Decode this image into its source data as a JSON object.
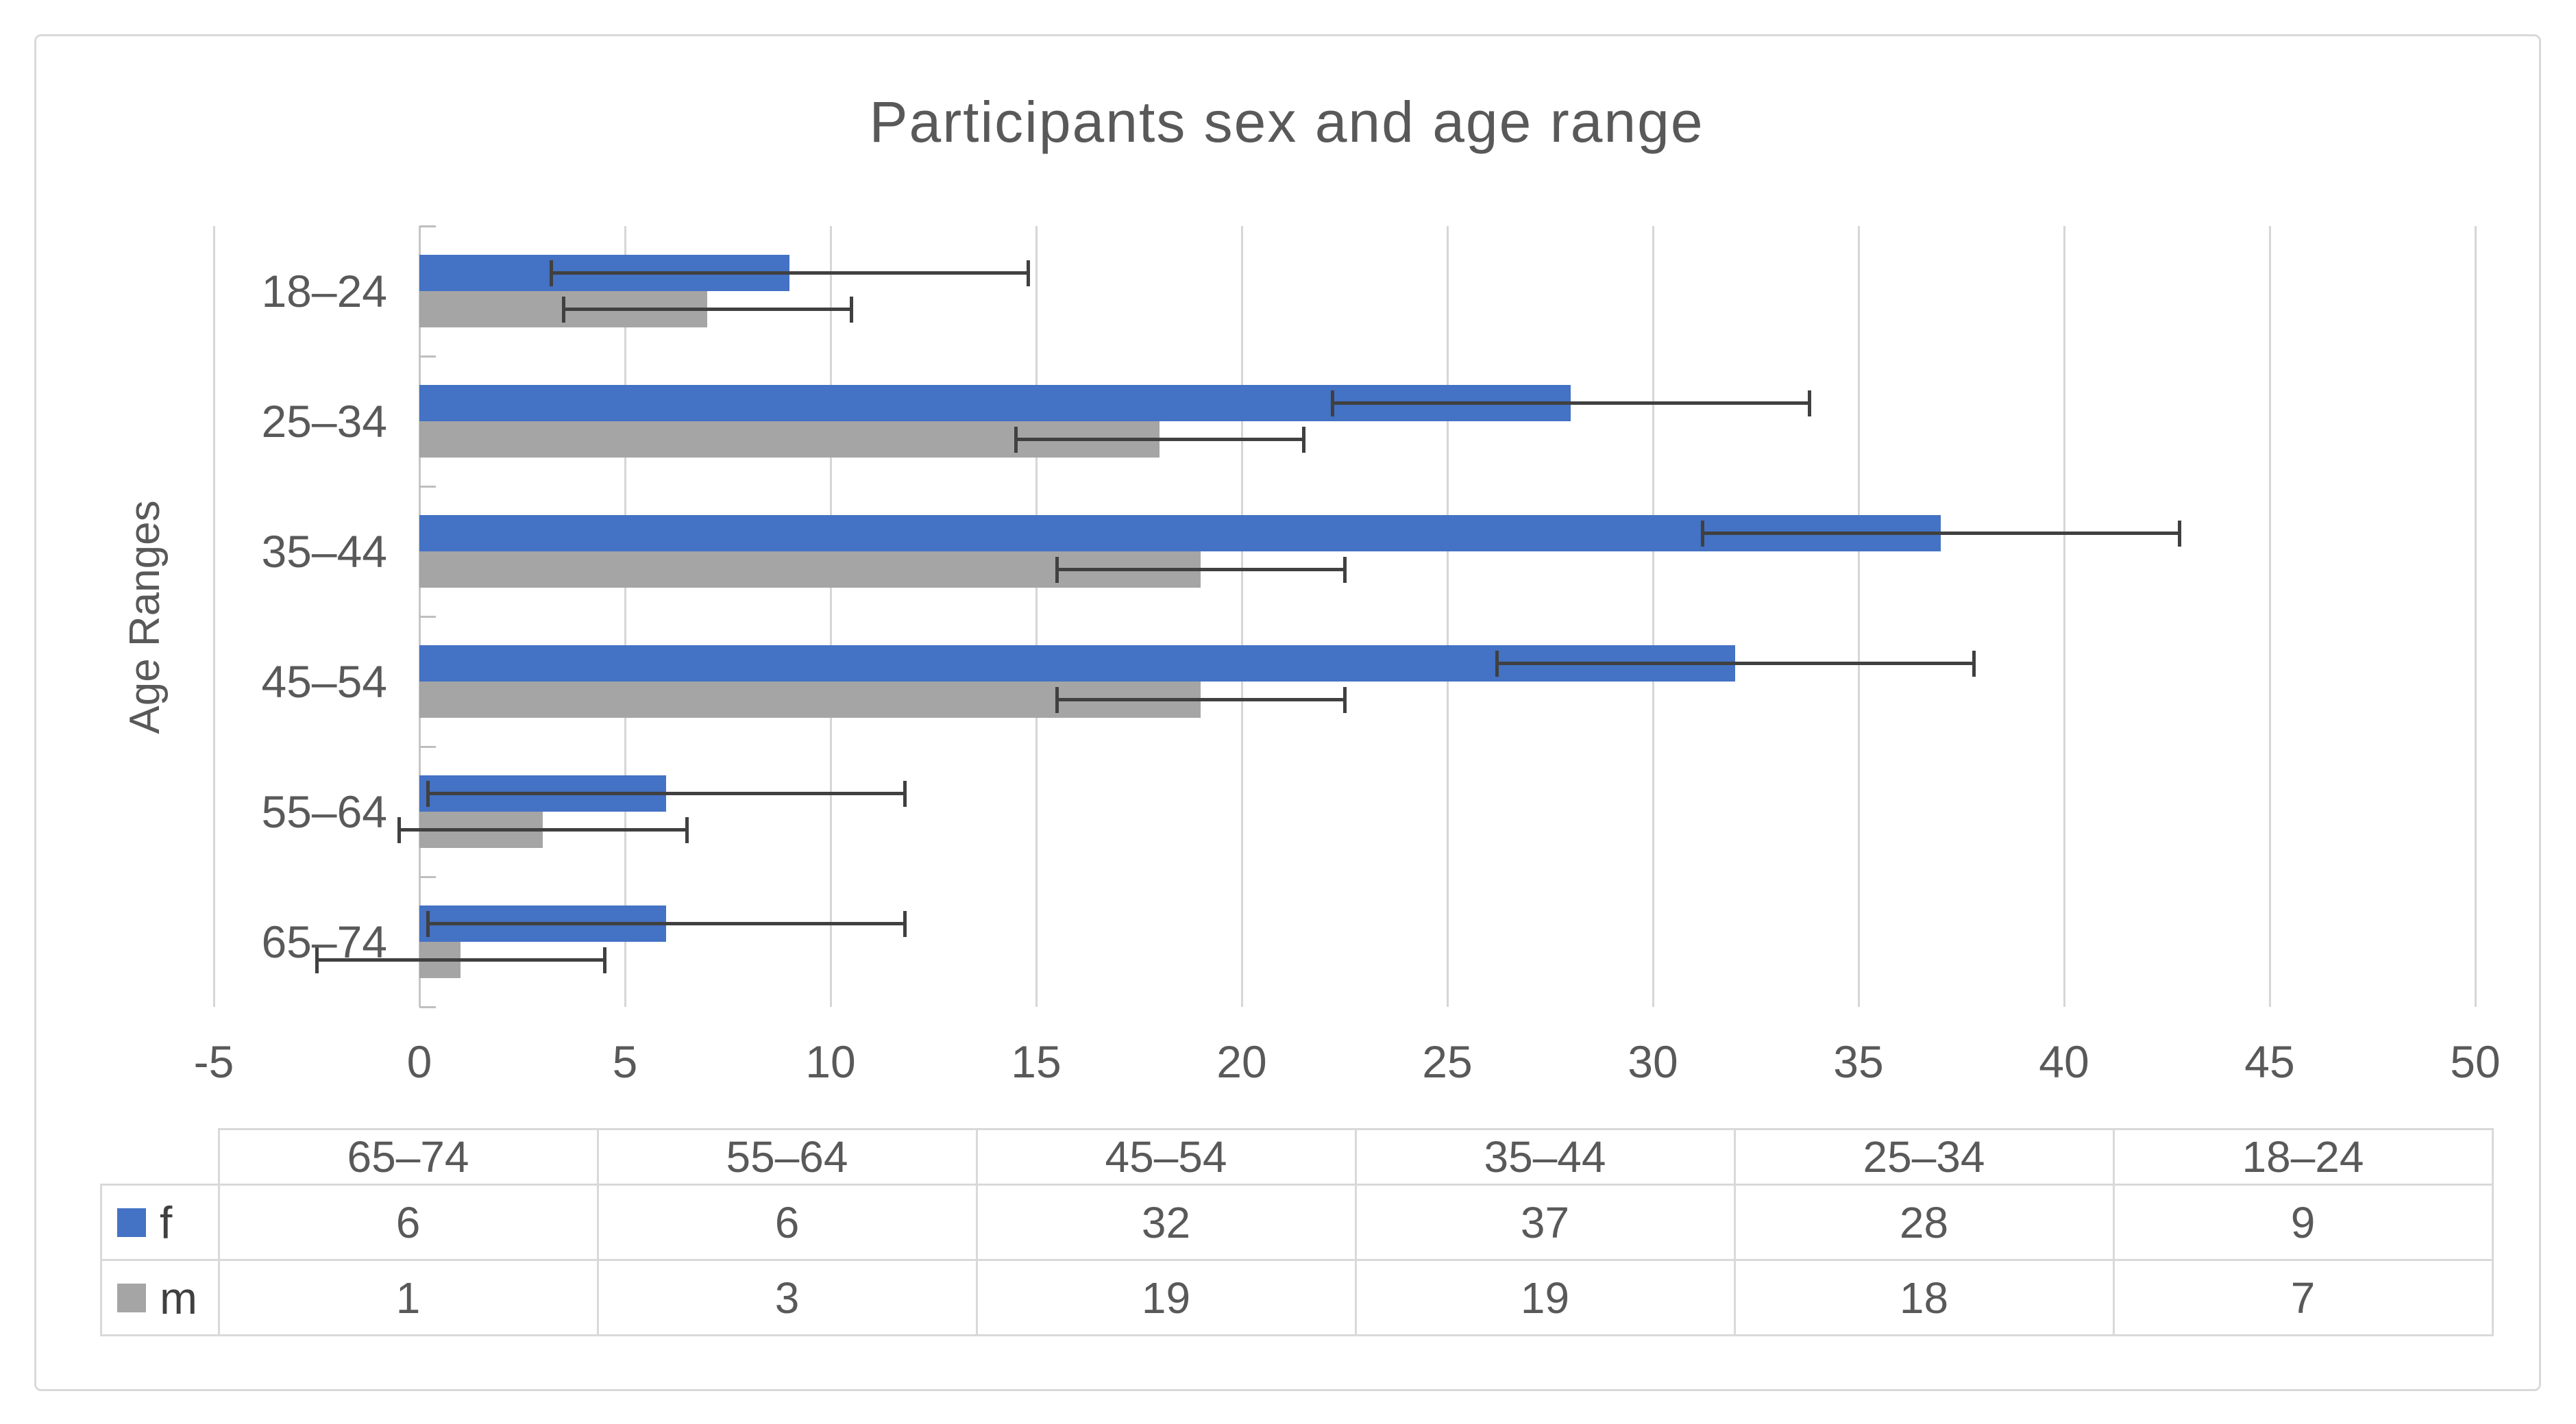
{
  "title": "Participants sex and age range",
  "y_axis_title": "Age Ranges",
  "colors": {
    "f_series": "#4472C4",
    "m_series": "#A5A5A5",
    "error_bar": "#404040",
    "gridline": "#D6D6D6",
    "axis_line": "#C6C6C6",
    "text": "#595959",
    "chart_border": "#D9D9D9"
  },
  "chart_data": {
    "type": "bar",
    "orientation": "horizontal",
    "title": "Participants sex and age range",
    "xlabel": "",
    "ylabel": "Age Ranges",
    "categories": [
      "18–24",
      "25–34",
      "35–44",
      "45–54",
      "55–64",
      "65–74"
    ],
    "series": [
      {
        "name": "f",
        "color": "#4472C4",
        "values": [
          9,
          28,
          37,
          32,
          6,
          6
        ],
        "error": 5.8
      },
      {
        "name": "m",
        "color": "#A5A5A5",
        "values": [
          7,
          18,
          19,
          19,
          3,
          1
        ],
        "error": 3.5
      }
    ],
    "xlim": [
      -5,
      50
    ],
    "xticks": [
      -5,
      0,
      5,
      10,
      15,
      20,
      25,
      30,
      35,
      40,
      45,
      50
    ],
    "xtick_labels": [
      "-5",
      "0",
      "5",
      "10",
      "15",
      "20",
      "25",
      "30",
      "35",
      "40",
      "45",
      "50"
    ],
    "grid": true,
    "legend_position": "data-table-left-column"
  },
  "data_table": {
    "columns": [
      "65–74",
      "55–64",
      "45–54",
      "35–44",
      "25–34",
      "18–24"
    ],
    "rows": [
      {
        "label": "f",
        "key_color": "#4472C4",
        "values": [
          "6",
          "6",
          "32",
          "37",
          "28",
          "9"
        ]
      },
      {
        "label": "m",
        "key_color": "#A5A5A5",
        "values": [
          "1",
          "3",
          "19",
          "19",
          "18",
          "7"
        ]
      }
    ]
  }
}
